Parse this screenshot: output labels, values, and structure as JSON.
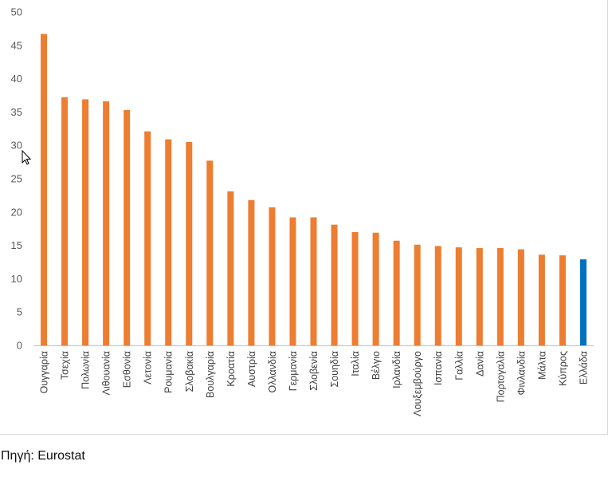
{
  "source": "Πηγή: Eurostat",
  "colors": {
    "default_bar": "#ED7D31",
    "highlight_bar": "#0070C0",
    "axis": "#bfbfbf"
  },
  "cursor_icon": "mouse-pointer-icon",
  "chart_data": {
    "type": "bar",
    "title": "",
    "xlabel": "",
    "ylabel": "",
    "ylim": [
      0,
      50
    ],
    "yticks": [
      0,
      5,
      10,
      15,
      20,
      25,
      30,
      35,
      40,
      45,
      50
    ],
    "grid": false,
    "categories": [
      "Ουγγαρία",
      "Τσεχία",
      "Πολωνία",
      "Λιθουανία",
      "Εσθονία",
      "Λετονία",
      "Ρουμανία",
      "Σλοβακία",
      "Βουλγαρία",
      "Κροατία",
      "Αυστρία",
      "Ολλανδία",
      "Γερμανία",
      "Σλοβενία",
      "Σουηδία",
      "Ιταλία",
      "Βέλγιο",
      "Ιρλανδία",
      "Λουξεμβούργο",
      "Ισπανία",
      "Γαλλία",
      "Δανία",
      "Πορτογαλία",
      "Φινλανδία",
      "Μάλτα",
      "Κύπρος",
      "Ελλάδα"
    ],
    "values": [
      46.7,
      37.2,
      36.9,
      36.6,
      35.3,
      32.1,
      30.9,
      30.5,
      27.7,
      23.1,
      21.8,
      20.7,
      19.2,
      19.2,
      18.1,
      17.0,
      16.9,
      15.7,
      15.1,
      14.9,
      14.7,
      14.6,
      14.6,
      14.4,
      13.6,
      13.5,
      12.9
    ],
    "highlight": "Ελλάδα"
  }
}
